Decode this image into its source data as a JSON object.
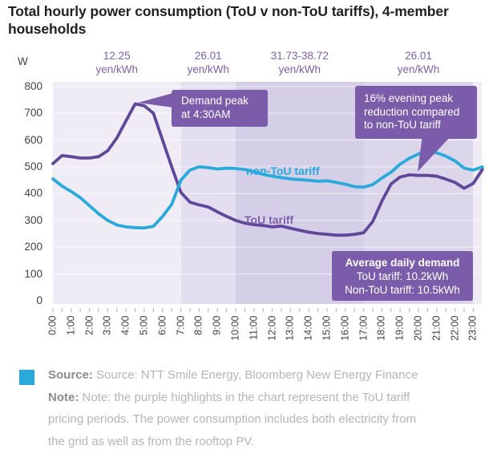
{
  "title": "Total hourly power consumption (ToU v non-ToU tariffs), 4-member households",
  "chart_data": {
    "type": "line",
    "title": "Total hourly power consumption (ToU v non-ToU tariffs), 4-member households",
    "xlabel": "",
    "ylabel": "W",
    "ylim": [
      0,
      800
    ],
    "y_ticks": [
      800,
      700,
      600,
      500,
      400,
      300,
      200,
      100,
      0
    ],
    "x_labels": [
      "0:00",
      "1:00",
      "2:00",
      "3:00",
      "4:00",
      "5:00",
      "6:00",
      "7:00",
      "8:00",
      "9:00",
      "10:00",
      "11:00",
      "12:00",
      "13:00",
      "14:00",
      "15:00",
      "16:00",
      "17:00",
      "18:00",
      "19:00",
      "20:00",
      "21:00",
      "22:00",
      "23:00"
    ],
    "x_step_minutes": 30,
    "grid": true,
    "legend_position": "inline-labels",
    "series": [
      {
        "name": "ToU tariff",
        "color": "#61479a",
        "values": [
          512,
          542,
          538,
          533,
          533,
          538,
          560,
          608,
          672,
          735,
          728,
          700,
          600,
          500,
          405,
          368,
          358,
          350,
          332,
          315,
          300,
          290,
          284,
          281,
          276,
          279,
          271,
          263,
          256,
          251,
          248,
          245,
          245,
          248,
          254,
          296,
          372,
          436,
          462,
          470,
          468,
          468,
          465,
          454,
          442,
          420,
          438,
          490
        ]
      },
      {
        "name": "non-ToU tariff",
        "color": "#29a9dc",
        "values": [
          455,
          428,
          408,
          385,
          355,
          325,
          300,
          283,
          276,
          273,
          272,
          278,
          315,
          360,
          450,
          488,
          500,
          497,
          492,
          495,
          494,
          490,
          482,
          472,
          465,
          460,
          455,
          452,
          450,
          446,
          448,
          442,
          435,
          426,
          424,
          434,
          458,
          480,
          510,
          532,
          548,
          558,
          552,
          540,
          522,
          495,
          488,
          500
        ]
      }
    ],
    "tariff_bands": [
      {
        "price_line1": "12.25",
        "price_line2": "yen/kWh",
        "start_hour": 0,
        "end_hour": 7,
        "color": "#efecf6"
      },
      {
        "price_line1": "26.01",
        "price_line2": "yen/kWh",
        "start_hour": 7,
        "end_hour": 10,
        "color": "#e3dff0"
      },
      {
        "price_line1": "31.73-38.72",
        "price_line2": "yen/kWh",
        "start_hour": 10,
        "end_hour": 17,
        "color": "#d5cee7"
      },
      {
        "price_line1": "26.01",
        "price_line2": "yen/kWh",
        "start_hour": 17,
        "end_hour": 23,
        "color": "#dcd6eb"
      },
      {
        "price_line1": "",
        "price_line2": "",
        "start_hour": 23,
        "end_hour": 24,
        "color": "#efecf6"
      }
    ],
    "annotations": [
      {
        "text": "Demand peak at 4:30AM",
        "target": "ToU tariff peak 735 W at 4:30"
      },
      {
        "text": "16% evening peak reduction compared to non-ToU tariff",
        "target": "ToU tariff evening plateau at 20:00"
      },
      {
        "text": "Average daily demand ToU tariff: 10.2kWh Non-ToU tariff: 10.5kWh"
      }
    ]
  },
  "axis": {
    "y_unit": "W"
  },
  "series_labels": {
    "non_tou": "non-ToU tariff",
    "tou": "ToU tariff"
  },
  "callouts": {
    "demand_peak": {
      "line1": "Demand peak",
      "line2": "at 4:30AM"
    },
    "evening_peak": {
      "line1": "16% evening peak",
      "line2": "reduction compared",
      "line3": "to non-ToU tariff"
    },
    "avg_demand": {
      "title": "Average daily demand",
      "line1": "ToU tariff: 10.2kWh",
      "line2": "Non-ToU tariff: 10.5kWh"
    }
  },
  "footer": {
    "source_label": "Source:",
    "source_text": "Source: NTT Smile Energy, Bloomberg New Energy Finance",
    "note_label": "Note:",
    "note_lines": [
      "Note: the purple highlights in the chart represent the ToU tariff",
      "pricing periods. The power consumption includes both electricity from",
      "the grid as well as from the rooftop PV."
    ]
  },
  "colors": {
    "tou_line": "#61479a",
    "nontou_line": "#29a9dc",
    "callout_bg": "#7a5cab",
    "price_label_text": "#7d5fad",
    "title_text": "#231f20",
    "axis_text": "#414042",
    "footer_square": "#29a9dc",
    "footer_label": "#8c8c8c",
    "footer_text": "#b3b6b9",
    "gridline": "#ffffff"
  }
}
